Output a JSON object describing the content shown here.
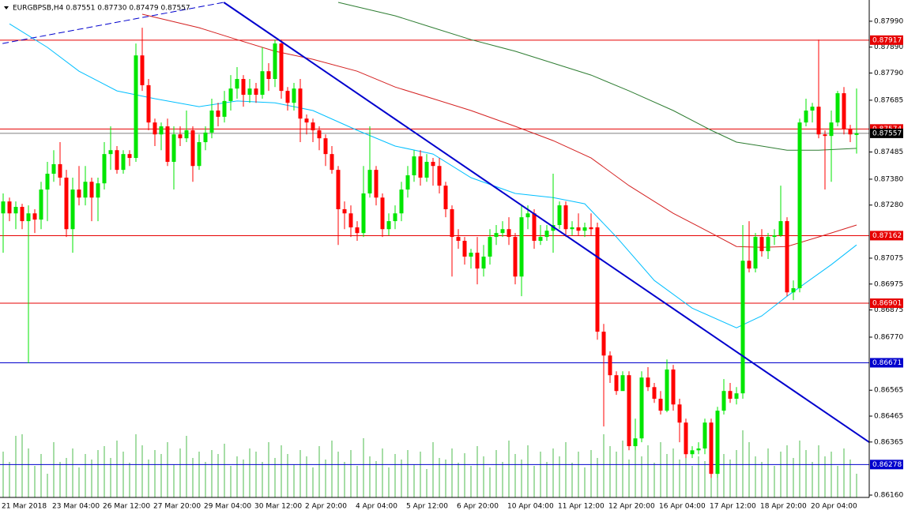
{
  "chart_data": {
    "type": "candlestick",
    "title": "EURGBPSB,H4  0.87551 0.87730 0.87479 0.87557",
    "ylim": [
      0.86151,
      0.88072
    ],
    "yticks": [
      {
        "value": 0.8799,
        "label": "0.87990"
      },
      {
        "value": 0.8789,
        "label": "0.87890"
      },
      {
        "value": 0.8779,
        "label": "0.87790"
      },
      0.87685,
      0.87485,
      {
        "value": 0.8738,
        "label": "0.87380"
      },
      {
        "value": 0.8728,
        "label": "0.87280"
      },
      0.87075,
      0.86975,
      0.86875,
      {
        "value": 0.8677,
        "label": "0.86770"
      },
      0.86565,
      0.86465,
      0.86365,
      {
        "value": 0.8616,
        "label": "0.86160"
      }
    ],
    "categories": [
      "21 Mar 2018",
      null,
      null,
      null,
      null,
      null,
      null,
      null,
      "23 Mar 04:00",
      null,
      null,
      null,
      null,
      null,
      null,
      null,
      "26 Mar 12:00",
      null,
      null,
      null,
      null,
      null,
      null,
      null,
      "27 Mar 20:00",
      null,
      null,
      null,
      null,
      null,
      null,
      null,
      "29 Mar 04:00",
      null,
      null,
      null,
      null,
      null,
      null,
      null,
      "30 Mar 12:00",
      null,
      null,
      null,
      null,
      null,
      null,
      null,
      "2 Apr 20:00",
      null,
      null,
      null,
      null,
      null,
      null,
      null,
      "4 Apr 04:00",
      null,
      null,
      null,
      null,
      null,
      null,
      null,
      "5 Apr 12:00",
      null,
      null,
      null,
      null,
      null,
      null,
      null,
      "6 Apr 20:00",
      null,
      null,
      null,
      null,
      null,
      null,
      null,
      "10 Apr 04:00",
      null,
      null,
      null,
      null,
      null,
      null,
      null,
      "11 Apr 12:00",
      null,
      null,
      null,
      null,
      null,
      null,
      null,
      "12 Apr 20:00",
      null,
      null,
      null,
      null,
      null,
      null,
      null,
      "16 Apr 04:00",
      null,
      null,
      null,
      null,
      null,
      null,
      null,
      "17 Apr 12:00",
      null,
      null,
      null,
      null,
      null,
      null,
      null,
      "18 Apr 20:00",
      null,
      null,
      null,
      null,
      null,
      null,
      null,
      "20 Apr 04:00",
      null,
      null,
      null,
      null,
      null,
      null,
      null
    ],
    "open": [
      0.87248,
      0.87294,
      0.87248,
      0.87273,
      0.87218,
      0.87248,
      0.87224,
      0.8734,
      0.87401,
      0.87438,
      0.87386,
      0.87187,
      0.8734,
      0.87309,
      0.8737,
      0.87309,
      0.87364,
      0.87477,
      0.87492,
      0.87416,
      0.87477,
      0.87462,
      0.87858,
      0.87743,
      0.87599,
      0.87553,
      0.87584,
      0.87447,
      0.87553,
      0.87538,
      0.87569,
      0.87431,
      0.87523,
      0.8756,
      0.87645,
      0.87621,
      0.87682,
      0.8773,
      0.87767,
      0.87706,
      0.8773,
      0.87706,
      0.87797,
      0.87767,
      0.87904,
      0.87721,
      0.87675,
      0.8773,
      0.87614,
      0.87599,
      0.87569,
      0.87538,
      0.87477,
      0.87416,
      0.87264,
      0.87248,
      0.87194,
      0.87172,
      0.87325,
      0.87416,
      0.87309,
      0.87187,
      0.87218,
      0.87248,
      0.8734,
      0.87395,
      0.87468,
      0.87386,
      0.87447,
      0.87431,
      0.87355,
      0.87264,
      0.87157,
      0.87142,
      0.87081,
      0.87096,
      0.87035,
      0.87081,
      0.87157,
      0.87172,
      0.87187,
      0.87157,
      0.87004,
      0.87233,
      0.87248,
      0.87142,
      0.87157,
      0.87181,
      0.87203,
      0.87279,
      0.87187,
      0.87194,
      0.87181,
      0.87194,
      0.87194,
      0.86791,
      0.86699,
      0.86623,
      0.86562,
      0.86623,
      0.86349,
      0.86379,
      0.86614,
      0.86577,
      0.86532,
      0.86486,
      0.86645,
      0.8651,
      0.8644,
      0.86318,
      0.86333,
      0.8634,
      0.8644,
      0.86242,
      0.86486,
      0.86562,
      0.86532,
      0.86553,
      0.87065,
      0.87035,
      0.87157,
      0.87102,
      0.87157,
      0.87163,
      0.87218,
      0.86943,
      0.86959,
      0.87599,
      0.87645,
      0.8766,
      0.87553,
      0.87547,
      0.87599,
      0.87712,
      0.87575,
      0.87551
    ],
    "high": [
      0.87325,
      0.87309,
      0.87294,
      0.87285,
      0.87279,
      0.87264,
      0.8737,
      0.87447,
      0.87492,
      0.87523,
      0.87416,
      0.87386,
      0.87431,
      0.87431,
      0.87386,
      0.87386,
      0.87523,
      0.87584,
      0.87508,
      0.87492,
      0.87492,
      0.87904,
      0.87965,
      0.87767,
      0.87614,
      0.87599,
      0.87614,
      0.87584,
      0.87584,
      0.87645,
      0.87584,
      0.87553,
      0.87584,
      0.87691,
      0.87675,
      0.87721,
      0.87782,
      0.87813,
      0.87782,
      0.87767,
      0.87752,
      0.87889,
      0.87828,
      0.87919,
      0.87919,
      0.87736,
      0.87752,
      0.87767,
      0.8763,
      0.87614,
      0.87584,
      0.87553,
      0.87508,
      0.87431,
      0.87294,
      0.87279,
      0.87218,
      0.87431,
      0.87584,
      0.87431,
      0.87325,
      0.87248,
      0.87279,
      0.8737,
      0.87431,
      0.87492,
      0.87492,
      0.87477,
      0.87462,
      0.87462,
      0.8737,
      0.87279,
      0.87187,
      0.87157,
      0.87111,
      0.87157,
      0.87126,
      0.87187,
      0.87203,
      0.87218,
      0.87233,
      0.87172,
      0.87279,
      0.87279,
      0.87264,
      0.87203,
      0.87203,
      0.87401,
      0.87294,
      0.87294,
      0.87218,
      0.87248,
      0.87212,
      0.87248,
      0.87212,
      0.86821,
      0.86715,
      0.86638,
      0.86638,
      0.86638,
      0.86455,
      0.86638,
      0.86654,
      0.86593,
      0.86562,
      0.86684,
      0.86663,
      0.86532,
      0.86455,
      0.86349,
      0.86364,
      0.86455,
      0.86455,
      0.86501,
      0.86608,
      0.86593,
      0.86577,
      0.87203,
      0.87218,
      0.87172,
      0.87187,
      0.87172,
      0.87187,
      0.87355,
      0.87233,
      0.86989,
      0.87614,
      0.87691,
      0.87675,
      0.87919,
      0.87569,
      0.87645,
      0.87721,
      0.87736,
      0.8759,
      0.8773
    ],
    "low": [
      0.87096,
      0.87218,
      0.87187,
      0.87187,
      0.86669,
      0.87172,
      0.87187,
      0.87218,
      0.8737,
      0.87355,
      0.87157,
      0.87096,
      0.87279,
      0.87279,
      0.87218,
      0.87218,
      0.8734,
      0.87416,
      0.87401,
      0.87401,
      0.87431,
      0.87447,
      0.87721,
      0.87569,
      0.87508,
      0.87492,
      0.87431,
      0.8734,
      0.87508,
      0.87523,
      0.8737,
      0.87416,
      0.87492,
      0.87538,
      0.87584,
      0.87599,
      0.87645,
      0.87691,
      0.8766,
      0.87675,
      0.87675,
      0.87691,
      0.87721,
      0.87736,
      0.87691,
      0.87645,
      0.87645,
      0.87523,
      0.87553,
      0.87523,
      0.87492,
      0.87431,
      0.87401,
      0.87126,
      0.87187,
      0.87157,
      0.87142,
      0.87157,
      0.87309,
      0.87279,
      0.87157,
      0.87163,
      0.87187,
      0.87218,
      0.87309,
      0.8737,
      0.87355,
      0.8737,
      0.87355,
      0.87325,
      0.87233,
      0.87004,
      0.87111,
      0.8705,
      0.87035,
      0.86974,
      0.87004,
      0.8705,
      0.87126,
      0.87157,
      0.87126,
      0.86974,
      0.86928,
      0.87187,
      0.87111,
      0.87126,
      0.87142,
      0.87096,
      0.87187,
      0.87157,
      0.87163,
      0.87163,
      0.87157,
      0.87163,
      0.8676,
      0.86425,
      0.86593,
      0.86547,
      0.86577,
      0.86333,
      0.86333,
      0.86364,
      0.86562,
      0.86516,
      0.86471,
      0.8648,
      0.86486,
      0.86364,
      0.86303,
      0.86303,
      0.86318,
      0.86318,
      0.86227,
      0.86227,
      0.86471,
      0.86516,
      0.8651,
      0.86532,
      0.8702,
      0.8702,
      0.87081,
      0.87072,
      0.87126,
      0.87157,
      0.86928,
      0.86913,
      0.86943,
      0.87584,
      0.87599,
      0.87538,
      0.8734,
      0.8737,
      0.87584,
      0.87553,
      0.87523,
      0.87479
    ],
    "close": [
      0.87294,
      0.87248,
      0.87273,
      0.87218,
      0.87248,
      0.87224,
      0.8734,
      0.87401,
      0.87438,
      0.87386,
      0.87187,
      0.8734,
      0.87309,
      0.8737,
      0.87309,
      0.87364,
      0.87477,
      0.87492,
      0.87416,
      0.87477,
      0.87462,
      0.87858,
      0.87743,
      0.87599,
      0.87553,
      0.87584,
      0.87447,
      0.87553,
      0.87538,
      0.87569,
      0.87431,
      0.87523,
      0.8756,
      0.87645,
      0.87621,
      0.87682,
      0.8773,
      0.87767,
      0.87706,
      0.8773,
      0.87706,
      0.87797,
      0.87767,
      0.87904,
      0.87721,
      0.87675,
      0.8773,
      0.87614,
      0.87599,
      0.87569,
      0.87538,
      0.87477,
      0.87416,
      0.87264,
      0.87248,
      0.87194,
      0.87172,
      0.87325,
      0.87416,
      0.87309,
      0.87187,
      0.87218,
      0.87248,
      0.8734,
      0.87395,
      0.87468,
      0.87386,
      0.87447,
      0.87431,
      0.87355,
      0.87264,
      0.87157,
      0.87142,
      0.87081,
      0.87096,
      0.87035,
      0.87081,
      0.87157,
      0.87172,
      0.87187,
      0.87157,
      0.87004,
      0.87233,
      0.87248,
      0.87142,
      0.87157,
      0.87181,
      0.87203,
      0.87279,
      0.87187,
      0.87194,
      0.87181,
      0.87194,
      0.87187,
      0.86791,
      0.86699,
      0.86623,
      0.86562,
      0.86623,
      0.86349,
      0.86379,
      0.86614,
      0.86577,
      0.86532,
      0.86486,
      0.86645,
      0.8651,
      0.8644,
      0.86318,
      0.86333,
      0.8634,
      0.8644,
      0.86242,
      0.86486,
      0.86562,
      0.86532,
      0.86553,
      0.87065,
      0.87035,
      0.87157,
      0.87102,
      0.87157,
      0.87163,
      0.87218,
      0.86943,
      0.86959,
      0.87599,
      0.87645,
      0.8766,
      0.87553,
      0.87547,
      0.87599,
      0.87712,
      0.87575,
      0.87553,
      0.87557
    ],
    "up_color": "#00e600",
    "down_color": "#ff0000",
    "volume": [
      58,
      45,
      78,
      80,
      62,
      40,
      55,
      30,
      70,
      45,
      50,
      62,
      38,
      55,
      48,
      60,
      65,
      50,
      72,
      58,
      44,
      80,
      66,
      48,
      60,
      55,
      70,
      42,
      62,
      78,
      50,
      58,
      45,
      60,
      55,
      68,
      40,
      52,
      48,
      62,
      58,
      45,
      70,
      50,
      66,
      55,
      42,
      60,
      52,
      38,
      65,
      48,
      72,
      58,
      45,
      60,
      40,
      75,
      52,
      46,
      62,
      38,
      55,
      48,
      60,
      42,
      58,
      36,
      70,
      50,
      48,
      62,
      44,
      56,
      40,
      65,
      52,
      38,
      60,
      45,
      72,
      55,
      48,
      66,
      40,
      58,
      45,
      62,
      52,
      70,
      44,
      58,
      38,
      60,
      50,
      80,
      65,
      58,
      72,
      48,
      60,
      52,
      66,
      44,
      70,
      55,
      62,
      48,
      58,
      40,
      52,
      46,
      78,
      62,
      55,
      48,
      60,
      85,
      70,
      52,
      45,
      62,
      40,
      58,
      66,
      50,
      72,
      60,
      45,
      66,
      52,
      58,
      40,
      62,
      48,
      30
    ],
    "volume_color": "#4cbb4c",
    "lines": [
      {
        "color": "#00bfff",
        "x": [
          1,
          7,
          12,
          18,
          24,
          31,
          37,
          43,
          49,
          56,
          62,
          68,
          74,
          81,
          87,
          92,
          97,
          103,
          109,
          116,
          120,
          124,
          131,
          135
        ],
        "values": [
          0.8798,
          0.87889,
          0.87797,
          0.87721,
          0.87691,
          0.8766,
          0.87682,
          0.87675,
          0.87645,
          0.87569,
          0.87508,
          0.87477,
          0.87386,
          0.87325,
          0.87309,
          0.87285,
          0.87157,
          0.86989,
          0.86882,
          0.86806,
          0.86852,
          0.86928,
          0.8705,
          0.87126
        ]
      },
      {
        "color": "#d42020",
        "x": [
          22,
          31,
          37,
          43,
          49,
          56,
          62,
          68,
          74,
          81,
          87,
          93,
          99,
          106,
          112,
          116,
          120,
          124,
          129,
          135
        ],
        "values": [
          0.88017,
          0.87965,
          0.87919,
          0.87874,
          0.87843,
          0.87797,
          0.87736,
          0.87691,
          0.87645,
          0.87584,
          0.87529,
          0.87462,
          0.87355,
          0.87248,
          0.87172,
          0.8712,
          0.87117,
          0.8712,
          0.87157,
          0.87203
        ]
      },
      {
        "color": "#2e7d32",
        "x": [
          53,
          62,
          68,
          74,
          81,
          87,
          93,
          99,
          106,
          112,
          116,
          120,
          124,
          129,
          135
        ],
        "values": [
          0.88063,
          0.88011,
          0.87965,
          0.87919,
          0.87874,
          0.87828,
          0.87782,
          0.87721,
          0.87645,
          0.87569,
          0.87523,
          0.87508,
          0.87492,
          0.87492,
          0.87499
        ]
      }
    ],
    "trendlines": [
      {
        "color": "#0000cd",
        "style": "solid",
        "x": [
          34.9,
          137
        ],
        "values": [
          0.88063,
          0.86364
        ]
      },
      {
        "color": "#0000cd",
        "style": "dashed",
        "x": [
          -0.1,
          34.9
        ],
        "values": [
          0.87904,
          0.88063
        ]
      }
    ],
    "levels": [
      {
        "value": 0.87917,
        "color": "#e60000"
      },
      {
        "value": 0.87574,
        "color": "#e60000"
      },
      {
        "value": 0.87162,
        "color": "#e60000"
      },
      {
        "value": 0.86901,
        "color": "#e60000"
      },
      {
        "value": 0.86671,
        "color": "#0000cd"
      },
      {
        "value": 0.86278,
        "color": "#0000cd"
      }
    ],
    "last_price": 0.87557,
    "last_price_color": "#000000"
  }
}
